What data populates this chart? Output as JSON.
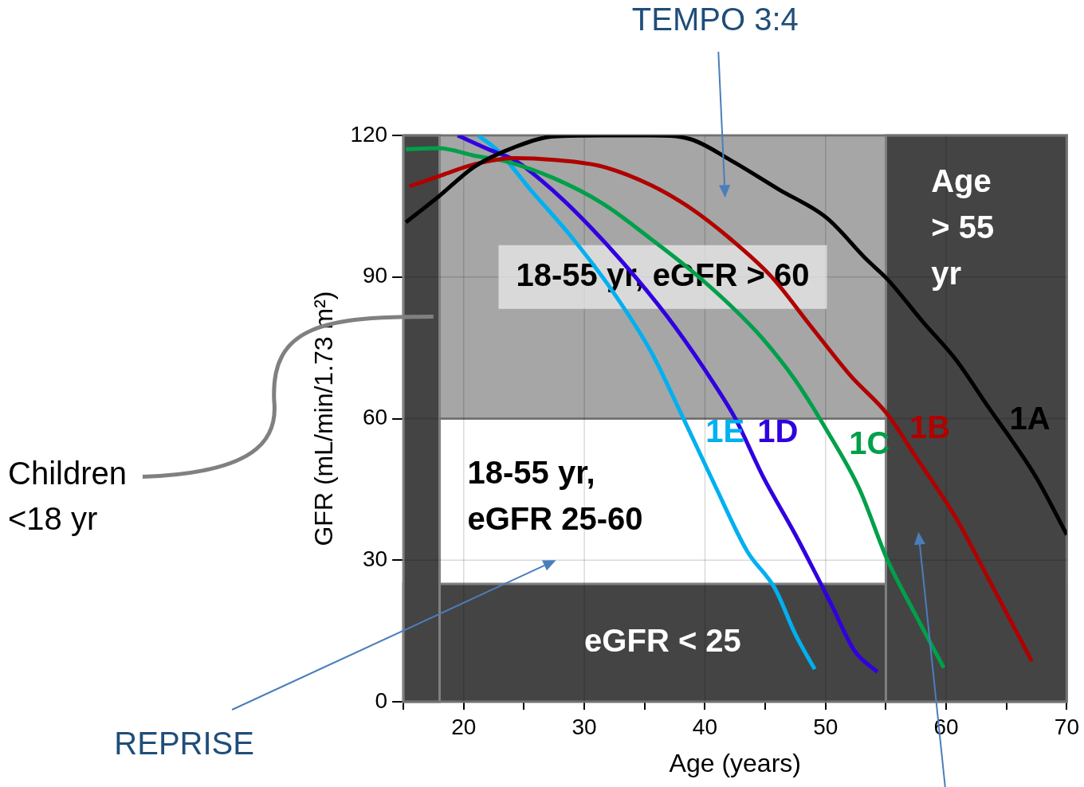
{
  "chart_data": {
    "type": "line",
    "xlabel": "Age (years)",
    "ylabel": "GFR (mL/min/1.73 m²)",
    "xlim": [
      15,
      70
    ],
    "xticks": [
      {
        "value": 15,
        "label": null
      },
      20,
      {
        "value": 25,
        "label": null
      },
      30,
      {
        "value": 35,
        "label": null
      },
      40,
      {
        "value": 45,
        "label": null
      },
      50,
      {
        "value": 55,
        "label": null
      },
      60,
      {
        "value": 65,
        "label": null
      },
      70
    ],
    "ylim": [
      0,
      120
    ],
    "yticks": [
      0,
      30,
      60,
      90,
      120
    ],
    "grid": true,
    "marker": "none",
    "bands": [
      {
        "axis": "y",
        "from": 60,
        "to": 120,
        "label": "18-55 yr, eGFR > 60",
        "color": "#a6a6a6"
      },
      {
        "axis": "y",
        "from": 0,
        "to": 25,
        "label": "eGFR < 25",
        "color": "#444444"
      },
      {
        "axis": "x",
        "from": 15,
        "to": 18,
        "label": "Children <18 yr",
        "color": "#444444"
      },
      {
        "axis": "x",
        "from": 55,
        "to": 70,
        "label": "Age > 55 yr",
        "color": "#444444"
      }
    ],
    "series": [
      {
        "name": "1A",
        "color": "#000000",
        "x": [
          15.2,
          17.9,
          20.9,
          24.2,
          27.5,
          31.5,
          35.5,
          38.8,
          42.1,
          46.1,
          50.1,
          53.4,
          55.1,
          58.1,
          60.8,
          63.4,
          67.4,
          70
        ],
        "values": [
          101.6,
          107,
          113.4,
          117.5,
          119.8,
          120,
          120,
          119.2,
          114.8,
          108.6,
          102.5,
          93.7,
          89.6,
          80.4,
          72.5,
          62.8,
          47.8,
          35.4
        ]
      },
      {
        "name": "1B",
        "color": "#b00000",
        "x": [
          15.5,
          18.2,
          20.9,
          24.2,
          27.5,
          31.5,
          35.5,
          38.8,
          42.1,
          45.5,
          48.8,
          52.1,
          55.1,
          57.4,
          60.8,
          63.4,
          67.1
        ],
        "values": [
          109.2,
          111.6,
          113.9,
          115.2,
          114.8,
          113.4,
          109.5,
          104.6,
          98.1,
          90.1,
          79.5,
          69,
          61,
          52.2,
          39,
          26.6,
          8.6
        ]
      },
      {
        "name": "1C",
        "color": "#00a04a",
        "x": [
          15.2,
          17.9,
          20.9,
          23.5,
          27.5,
          31.5,
          35.5,
          38.8,
          42.1,
          44.8,
          47.5,
          50.1,
          52.8,
          55.1,
          57.4,
          59.8
        ],
        "values": [
          117.1,
          117.3,
          115.7,
          114.5,
          110.9,
          105.6,
          98.1,
          91.5,
          84,
          76.9,
          68.1,
          57.5,
          45.1,
          30.2,
          18.7,
          7.2
        ]
      },
      {
        "name": "1D",
        "color": "#3000e0",
        "x": [
          19.5,
          22.2,
          24.2,
          27.5,
          30.8,
          34.2,
          37.5,
          40.8,
          42.5,
          44.8,
          47.5,
          50.5,
          52.4,
          54.3
        ],
        "values": [
          120,
          116.9,
          114.8,
          108.1,
          99.8,
          90.1,
          79.5,
          67.2,
          60.1,
          47.8,
          35.4,
          20.5,
          10.8,
          6.3
        ]
      },
      {
        "name": "1E",
        "color": "#00b0f0",
        "x": [
          21.2,
          22.9,
          25.5,
          28.8,
          32.2,
          35.5,
          38.2,
          40.8,
          43.5,
          45.8,
          47.5,
          49.1
        ],
        "values": [
          120,
          116.6,
          108.6,
          98.9,
          87.5,
          74.3,
          60.1,
          46,
          31.9,
          24,
          14.3,
          6.9
        ]
      }
    ],
    "annotations": [
      "TEMPO 3:4",
      "REPRISE",
      "18-55 yr, eGFR 25-60"
    ]
  }
}
